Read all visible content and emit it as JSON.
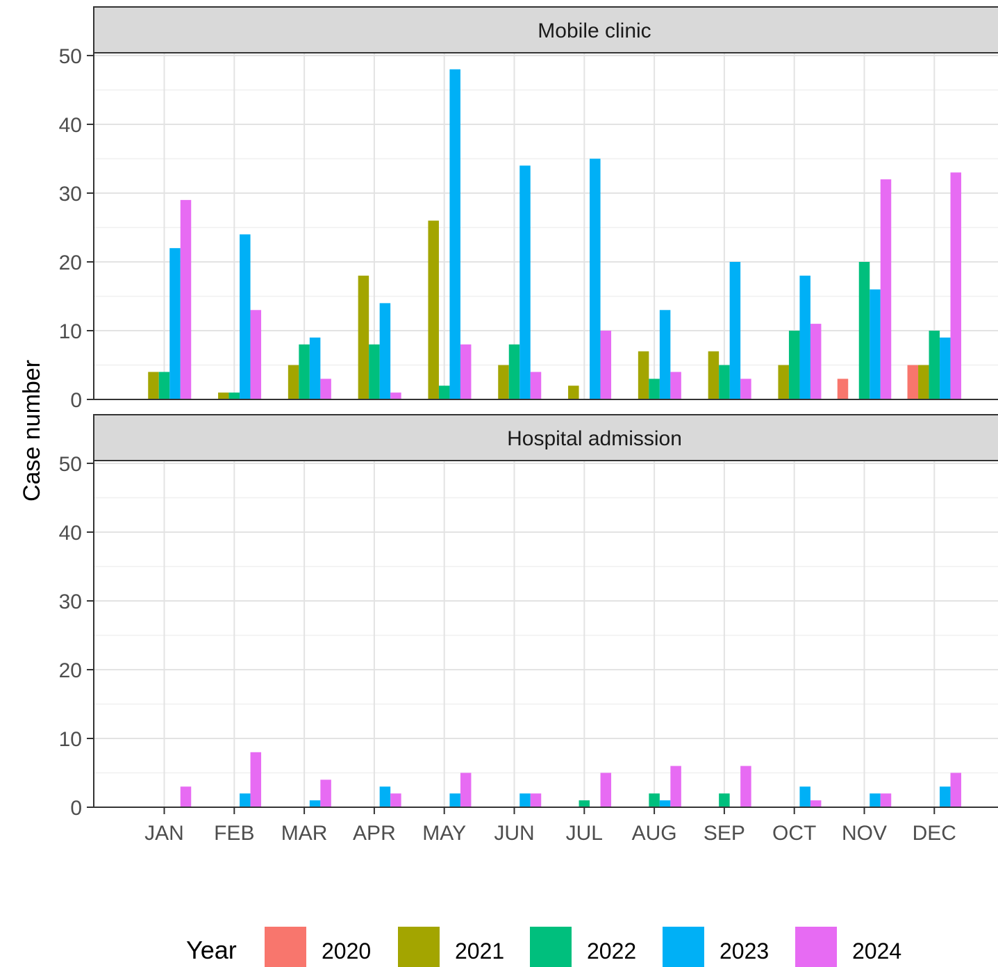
{
  "chart_data": {
    "type": "bar",
    "ylabel": "Case number",
    "xlabel": "",
    "ylim": [
      0,
      50
    ],
    "yticks": [
      0,
      10,
      20,
      30,
      40,
      50
    ],
    "grid": true,
    "legend": {
      "title": "Year",
      "position": "bottom"
    },
    "categories": [
      "JAN",
      "FEB",
      "MAR",
      "APR",
      "MAY",
      "JUN",
      "JUL",
      "AUG",
      "SEP",
      "OCT",
      "NOV",
      "DEC"
    ],
    "series_colors": {
      "2020": "#F8766D",
      "2021": "#A3A500",
      "2022": "#00BF7D",
      "2023": "#00B0F6",
      "2024": "#E76BF3"
    },
    "panels": [
      {
        "title": "Mobile clinic",
        "series": [
          {
            "name": "2020",
            "values": [
              0,
              0,
              0,
              0,
              0,
              0,
              0,
              0,
              0,
              0,
              3,
              5
            ]
          },
          {
            "name": "2021",
            "values": [
              4,
              1,
              5,
              18,
              26,
              5,
              2,
              7,
              7,
              5,
              0,
              5
            ]
          },
          {
            "name": "2022",
            "values": [
              4,
              1,
              8,
              8,
              2,
              8,
              0,
              3,
              5,
              10,
              20,
              10
            ]
          },
          {
            "name": "2023",
            "values": [
              22,
              24,
              9,
              14,
              48,
              34,
              35,
              13,
              20,
              18,
              16,
              9
            ]
          },
          {
            "name": "2024",
            "values": [
              29,
              13,
              3,
              1,
              8,
              4,
              10,
              4,
              3,
              11,
              32,
              33
            ]
          }
        ]
      },
      {
        "title": "Hospital admission",
        "series": [
          {
            "name": "2020",
            "values": [
              0,
              0,
              0,
              0,
              0,
              0,
              0,
              0,
              0,
              0,
              0,
              0
            ]
          },
          {
            "name": "2021",
            "values": [
              0,
              0,
              0,
              0,
              0,
              0,
              0,
              0,
              0,
              0,
              0,
              0
            ]
          },
          {
            "name": "2022",
            "values": [
              0,
              0,
              0,
              0,
              0,
              0,
              1,
              2,
              2,
              0,
              0,
              0
            ]
          },
          {
            "name": "2023",
            "values": [
              0,
              2,
              1,
              3,
              2,
              2,
              0,
              1,
              0,
              3,
              2,
              3
            ]
          },
          {
            "name": "2024",
            "values": [
              3,
              8,
              4,
              2,
              5,
              2,
              5,
              6,
              6,
              1,
              2,
              5
            ]
          }
        ]
      }
    ]
  }
}
